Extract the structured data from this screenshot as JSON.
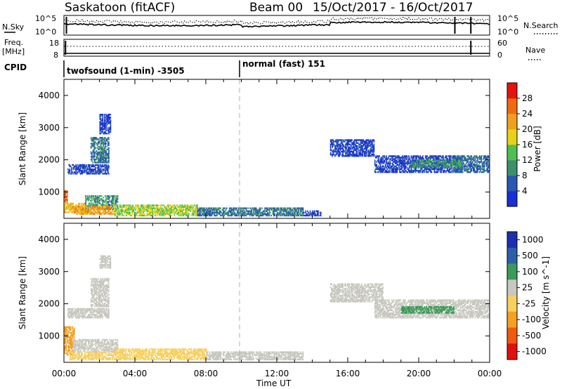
{
  "header": {
    "station": "Saskatoon (fitACF)",
    "beam": "Beam 00",
    "dates": "15/Oct/2017 - 16/Oct/2017"
  },
  "noise_panel": {
    "left_label": "N.Sky",
    "right_label": "N.Search",
    "left_ticks": [
      "10^5",
      "10^0"
    ],
    "right_ticks": [
      "10^5",
      "10^0"
    ]
  },
  "freq_panel": {
    "left_label_1": "Freq.",
    "left_label_2": "[MHz]",
    "right_label": "Nave",
    "left_ticks": [
      "18",
      "8"
    ],
    "right_ticks": [
      "60",
      "0"
    ]
  },
  "cpid_panel": {
    "label": "CPID",
    "modes": [
      "twofsound (1-min) -3505",
      "normal (fast) 151"
    ]
  },
  "time_axis": {
    "xlabel": "Time UT",
    "tick_labels": [
      "00:00",
      "04:00",
      "08:00",
      "12:00",
      "16:00",
      "20:00",
      "00:00"
    ]
  },
  "colors": {
    "power_scale": [
      "#1a2fd6",
      "#2a58b0",
      "#3d8f6e",
      "#4fbf4f",
      "#e6d219",
      "#f0a020",
      "#f06a10",
      "#e6120c"
    ],
    "velocity_scale": [
      "#e01010",
      "#f05a10",
      "#f4a020",
      "#f7d060",
      "#c8c8c0",
      "#3e9a5a",
      "#2c5fa8",
      "#1a2fb0"
    ],
    "mode_divider": "#b0b0b0"
  },
  "chart_data": [
    {
      "type": "heatmap",
      "title": "Power",
      "ylabel": "Slant Range [km]",
      "xlabel": "",
      "x_range_hours": [
        0,
        24
      ],
      "ylim": [
        180,
        4500
      ],
      "y_ticks": [
        1000,
        2000,
        3000,
        4000
      ],
      "colorbar_label": "Power [dB]",
      "colorbar_ticks": [
        "4",
        "8",
        "12",
        "16",
        "20",
        "24",
        "28"
      ],
      "mode_change_hour": 10,
      "regions": [
        {
          "t": [
            0.0,
            0.2
          ],
          "r": [
            650,
            1050
          ],
          "level": 28
        },
        {
          "t": [
            0.0,
            1.2
          ],
          "r": [
            350,
            650
          ],
          "level": 22
        },
        {
          "t": [
            1.2,
            3.0
          ],
          "r": [
            450,
            900
          ],
          "level": 12
        },
        {
          "t": [
            0.5,
            2.8
          ],
          "r": [
            300,
            550
          ],
          "level": 24
        },
        {
          "t": [
            0.2,
            2.5
          ],
          "r": [
            1550,
            1850
          ],
          "level": 6
        },
        {
          "t": [
            1.5,
            2.5
          ],
          "r": [
            1900,
            2700
          ],
          "level": 10
        },
        {
          "t": [
            2.0,
            2.6
          ],
          "r": [
            2800,
            3400
          ],
          "level": 6
        },
        {
          "t": [
            2.8,
            7.5
          ],
          "r": [
            250,
            600
          ],
          "level": 18
        },
        {
          "t": [
            7.5,
            13.5
          ],
          "r": [
            250,
            500
          ],
          "level": 10
        },
        {
          "t": [
            13.5,
            14.5
          ],
          "r": [
            250,
            400
          ],
          "level": 6
        },
        {
          "t": [
            15.0,
            17.5
          ],
          "r": [
            2100,
            2600
          ],
          "level": 6
        },
        {
          "t": [
            17.5,
            22.5
          ],
          "r": [
            1600,
            2100
          ],
          "level": 6
        },
        {
          "t": [
            22.0,
            24.0
          ],
          "r": [
            1600,
            2100
          ],
          "level": 9
        },
        {
          "t": [
            19.5,
            22.5
          ],
          "r": [
            1750,
            2000
          ],
          "level": 12
        }
      ]
    },
    {
      "type": "heatmap",
      "title": "Velocity",
      "ylabel": "Slant Range [km]",
      "xlabel": "Time UT",
      "x_range_hours": [
        0,
        24
      ],
      "ylim": [
        180,
        4500
      ],
      "y_ticks": [
        1000,
        2000,
        3000,
        4000
      ],
      "colorbar_label": "Velocity [m s^-1]",
      "colorbar_ticks": [
        "1000",
        "500",
        "100",
        "25",
        "-25",
        "-100",
        "-500",
        "-1000"
      ],
      "mode_change_hour": 10,
      "regions": [
        {
          "t": [
            0.0,
            0.6
          ],
          "r": [
            400,
            1300
          ],
          "level": -300
        },
        {
          "t": [
            0.3,
            2.8
          ],
          "r": [
            250,
            500
          ],
          "level": -80
        },
        {
          "t": [
            0.5,
            3.0
          ],
          "r": [
            500,
            900
          ],
          "level": 0
        },
        {
          "t": [
            0.2,
            2.5
          ],
          "r": [
            1550,
            1850
          ],
          "level": 0
        },
        {
          "t": [
            1.5,
            2.5
          ],
          "r": [
            1900,
            2800
          ],
          "level": 0
        },
        {
          "t": [
            2.0,
            2.6
          ],
          "r": [
            3100,
            3500
          ],
          "level": 0
        },
        {
          "t": [
            2.8,
            8.0
          ],
          "r": [
            250,
            600
          ],
          "level": -60
        },
        {
          "t": [
            8.0,
            13.5
          ],
          "r": [
            250,
            500
          ],
          "level": 0
        },
        {
          "t": [
            15.0,
            18.0
          ],
          "r": [
            2050,
            2600
          ],
          "level": 0
        },
        {
          "t": [
            17.5,
            24.0
          ],
          "r": [
            1550,
            2100
          ],
          "level": 0
        },
        {
          "t": [
            19.0,
            22.0
          ],
          "r": [
            1700,
            1900
          ],
          "level": 60
        }
      ]
    }
  ]
}
